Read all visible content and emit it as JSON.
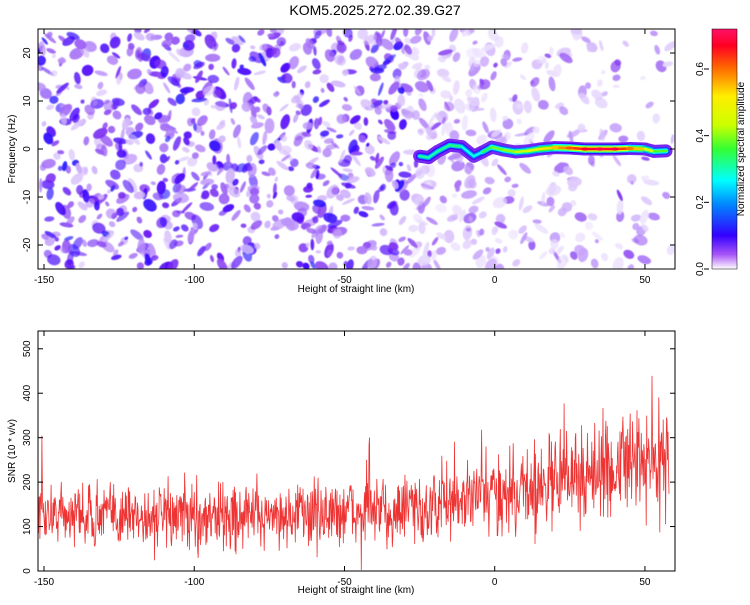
{
  "title": "KOM5.2025.272.02.39.G27",
  "chart_data": [
    {
      "type": "heatmap",
      "title": "KOM5.2025.272.02.39.G27",
      "xlabel": "Height of straight line (km)",
      "ylabel": "Frequency (Hz)",
      "xlim": [
        -152,
        60
      ],
      "ylim": [
        -25,
        25
      ],
      "xticks": [
        -150,
        -100,
        -50,
        0,
        50
      ],
      "yticks": [
        -20,
        -10,
        0,
        10,
        20
      ],
      "colorbar": {
        "label": "Normalized spectral amplitude",
        "range": [
          0,
          0.72
        ],
        "ticks": [
          "0.0",
          "0.2",
          "0.4",
          "0.6"
        ],
        "tick_values": [
          0,
          0.2,
          0.4,
          0.6
        ]
      },
      "ridge": {
        "description_free": true,
        "points": [
          {
            "x": -25,
            "y": -1.5,
            "v": 0.3
          },
          {
            "x": -22,
            "y": -1.8,
            "v": 0.32
          },
          {
            "x": -19,
            "y": -0.5,
            "v": 0.28
          },
          {
            "x": -15,
            "y": 0.8,
            "v": 0.35
          },
          {
            "x": -11,
            "y": 0.5,
            "v": 0.3
          },
          {
            "x": -7,
            "y": -1.5,
            "v": 0.25
          },
          {
            "x": -4,
            "y": -0.6,
            "v": 0.3
          },
          {
            "x": -1,
            "y": 0.4,
            "v": 0.38
          },
          {
            "x": 3,
            "y": -0.2,
            "v": 0.4
          },
          {
            "x": 7,
            "y": -0.6,
            "v": 0.42
          },
          {
            "x": 11,
            "y": -0.4,
            "v": 0.45
          },
          {
            "x": 15,
            "y": 0.0,
            "v": 0.48
          },
          {
            "x": 20,
            "y": 0.3,
            "v": 0.55
          },
          {
            "x": 25,
            "y": 0.2,
            "v": 0.62
          },
          {
            "x": 30,
            "y": 0.0,
            "v": 0.68
          },
          {
            "x": 35,
            "y": 0.0,
            "v": 0.7
          },
          {
            "x": 40,
            "y": 0.0,
            "v": 0.69
          },
          {
            "x": 45,
            "y": 0.1,
            "v": 0.6
          },
          {
            "x": 50,
            "y": 0.0,
            "v": 0.5
          },
          {
            "x": 53,
            "y": -0.5,
            "v": 0.4
          },
          {
            "x": 57,
            "y": -0.4,
            "v": 0.35
          }
        ]
      }
    },
    {
      "type": "line",
      "xlabel": "Height of straight line (km)",
      "ylabel": "SNR (10 * v/v)",
      "xlim": [
        -152,
        60
      ],
      "ylim": [
        0,
        540
      ],
      "xticks": [
        -150,
        -100,
        -50,
        0,
        50
      ],
      "yticks": [
        0,
        100,
        200,
        300,
        400,
        500
      ],
      "series": [
        {
          "name": "SNR",
          "color": "#ee3333",
          "envelope": [
            {
              "x": -150,
              "mean": 130,
              "amp": 75
            },
            {
              "x": -100,
              "mean": 125,
              "amp": 80
            },
            {
              "x": -50,
              "mean": 130,
              "amp": 80
            },
            {
              "x": -25,
              "mean": 140,
              "amp": 85
            },
            {
              "x": 0,
              "mean": 170,
              "amp": 100
            },
            {
              "x": 25,
              "mean": 210,
              "amp": 115
            },
            {
              "x": 50,
              "mean": 250,
              "amp": 130
            },
            {
              "x": 58,
              "mean": 260,
              "amp": 135
            }
          ]
        }
      ]
    }
  ]
}
